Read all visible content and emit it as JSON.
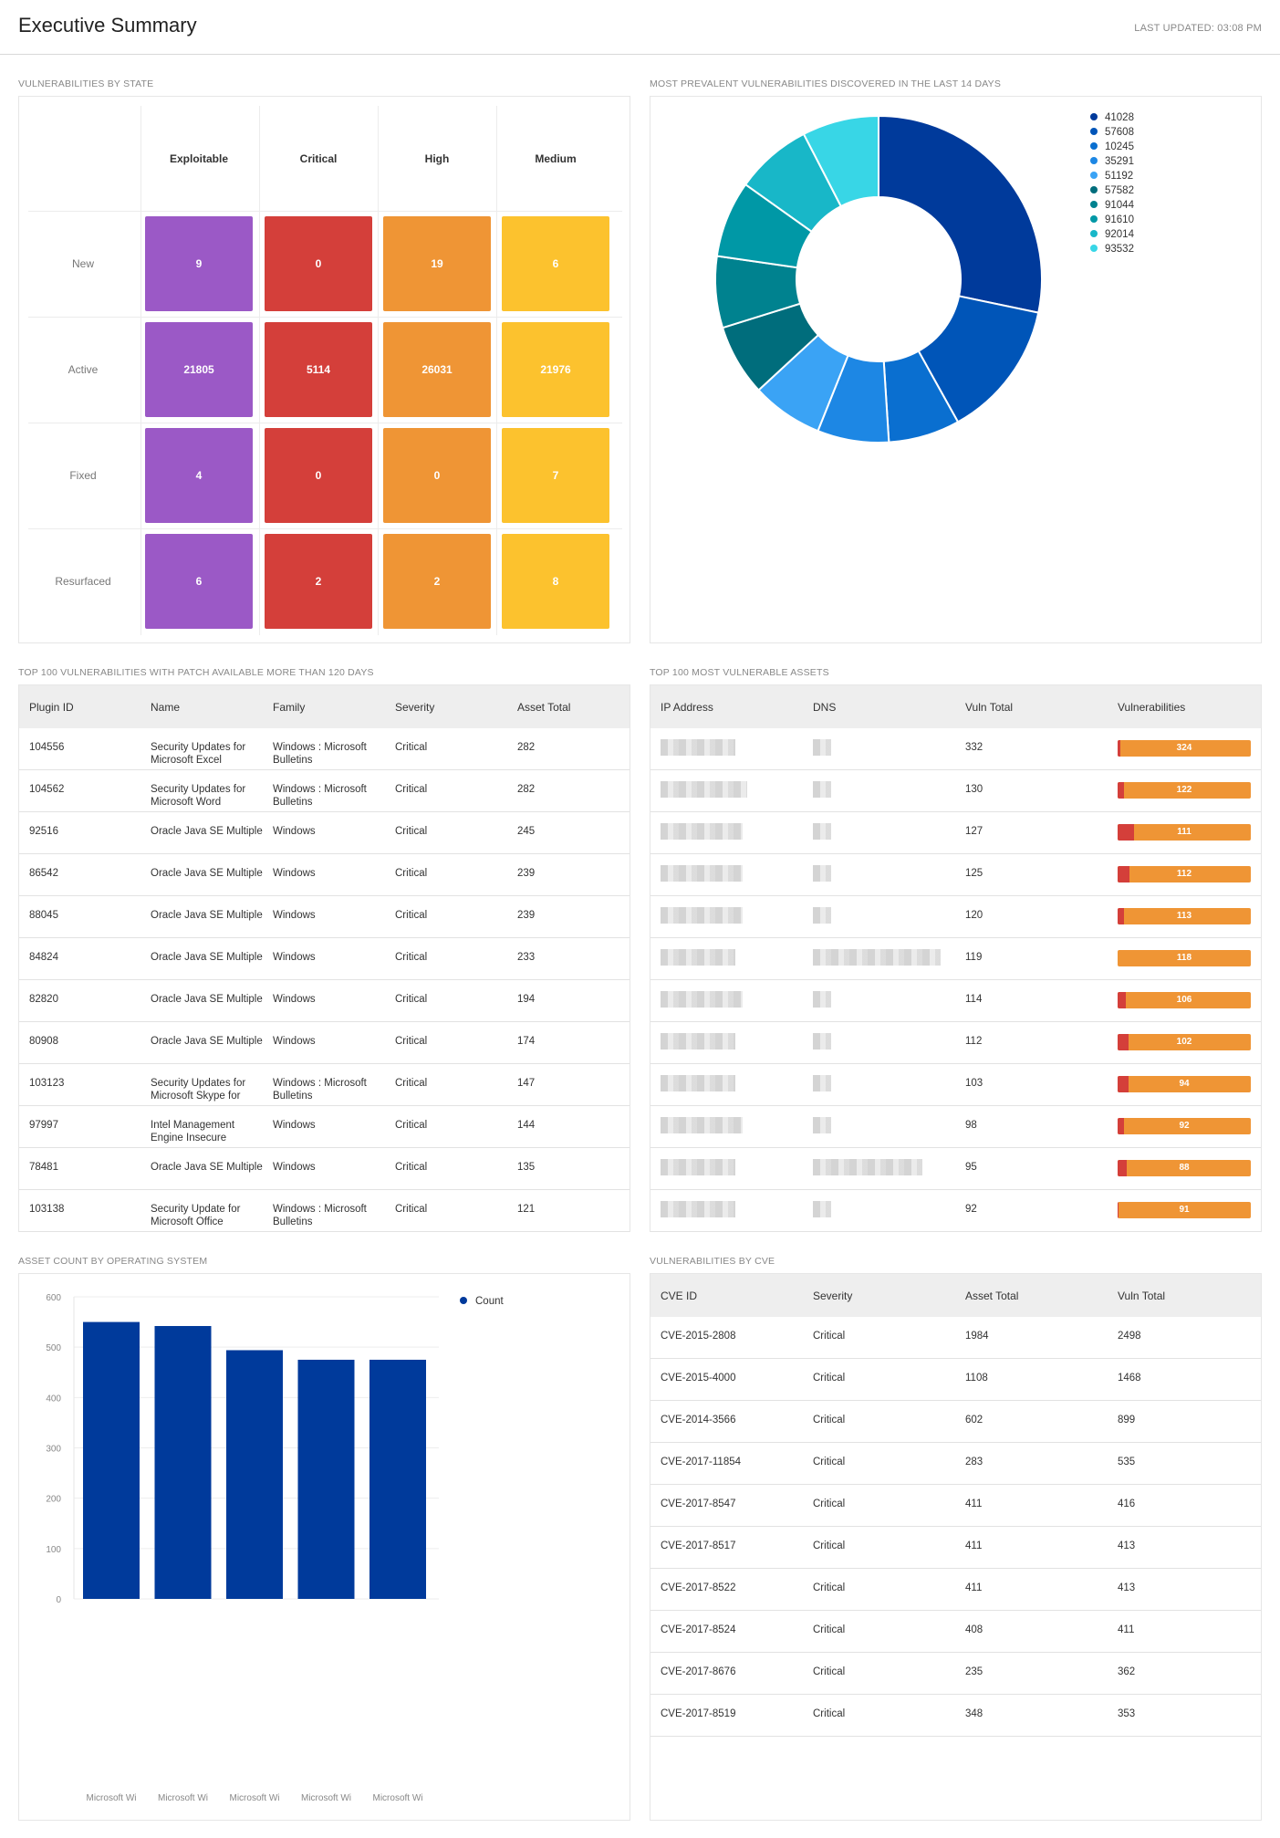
{
  "header": {
    "title": "Executive Summary",
    "last_updated": "LAST UPDATED: 03:08 PM"
  },
  "vuln_state": {
    "title": "VULNERABILITIES BY STATE",
    "columns": [
      "Exploitable",
      "Critical",
      "High",
      "Medium"
    ],
    "rows": [
      {
        "label": "New",
        "values": [
          "9",
          "0",
          "19",
          "6"
        ]
      },
      {
        "label": "Active",
        "values": [
          "21805",
          "5114",
          "26031",
          "21976"
        ]
      },
      {
        "label": "Fixed",
        "values": [
          "4",
          "0",
          "0",
          "7"
        ]
      },
      {
        "label": "Resurfaced",
        "values": [
          "6",
          "2",
          "2",
          "8"
        ]
      }
    ],
    "colors": [
      "#9b59c6",
      "#d43f3a",
      "#ef9535",
      "#fcc22e"
    ]
  },
  "prevalent": {
    "title": "MOST PREVALENT VULNERABILITIES DISCOVERED IN THE LAST 14 DAYS"
  },
  "chart_data": [
    {
      "type": "pie",
      "title": "MOST PREVALENT VULNERABILITIES DISCOVERED IN THE LAST 14 DAYS",
      "donut": true,
      "legend_position": "right",
      "labels": [
        "41028",
        "57608",
        "10245",
        "35291",
        "51192",
        "57582",
        "91044",
        "91610",
        "92014",
        "93532"
      ],
      "values": [
        28,
        13.5,
        7,
        7,
        7,
        7,
        7,
        7.5,
        7.5,
        7.5
      ],
      "colors": [
        "#003a9b",
        "#0055b8",
        "#0a6fd0",
        "#1d87e4",
        "#3aa3f5",
        "#006d7c",
        "#00828f",
        "#0098a6",
        "#18b7c8",
        "#38d6e6"
      ]
    },
    {
      "type": "bar",
      "title": "ASSET COUNT BY OPERATING SYSTEM",
      "categories": [
        "Microsoft Wi",
        "Microsoft Wi",
        "Microsoft Wi",
        "Microsoft Wi",
        "Microsoft Wi"
      ],
      "series": [
        {
          "name": "Count",
          "values": [
            550,
            542,
            494,
            475,
            475
          ]
        }
      ],
      "ylim": [
        0,
        600
      ],
      "yticks": [
        0,
        100,
        200,
        300,
        400,
        500,
        600
      ],
      "color": "#003a9b",
      "legend_position": "top-right"
    }
  ],
  "patch_table": {
    "title": "TOP 100 VULNERABILITIES WITH PATCH AVAILABLE MORE THAN 120 DAYS",
    "columns": [
      "Plugin ID",
      "Name",
      "Family",
      "Severity",
      "Asset Total"
    ],
    "rows": [
      [
        "104556",
        "Security Updates for Microsoft Excel",
        "Windows : Microsoft Bulletins",
        "Critical",
        "282"
      ],
      [
        "104562",
        "Security Updates for Microsoft Word",
        "Windows : Microsoft Bulletins",
        "Critical",
        "282"
      ],
      [
        "92516",
        "Oracle Java SE Multiple",
        "Windows",
        "Critical",
        "245"
      ],
      [
        "86542",
        "Oracle Java SE Multiple",
        "Windows",
        "Critical",
        "239"
      ],
      [
        "88045",
        "Oracle Java SE Multiple",
        "Windows",
        "Critical",
        "239"
      ],
      [
        "84824",
        "Oracle Java SE Multiple",
        "Windows",
        "Critical",
        "233"
      ],
      [
        "82820",
        "Oracle Java SE Multiple",
        "Windows",
        "Critical",
        "194"
      ],
      [
        "80908",
        "Oracle Java SE Multiple",
        "Windows",
        "Critical",
        "174"
      ],
      [
        "103123",
        "Security Updates for Microsoft Skype for",
        "Windows : Microsoft Bulletins",
        "Critical",
        "147"
      ],
      [
        "97997",
        "Intel Management Engine Insecure",
        "Windows",
        "Critical",
        "144"
      ],
      [
        "78481",
        "Oracle Java SE Multiple",
        "Windows",
        "Critical",
        "135"
      ],
      [
        "103138",
        "Security Update for Microsoft Office",
        "Windows : Microsoft Bulletins",
        "Critical",
        "121"
      ]
    ]
  },
  "assets_table": {
    "title": "TOP 100 MOST VULNERABLE ASSETS",
    "columns": [
      "IP Address",
      "DNS",
      "Vuln Total",
      "Vulnerabilities"
    ],
    "rows": [
      {
        "total": "332",
        "bar_label": "324",
        "critical_fraction": 0.02
      },
      {
        "total": "130",
        "bar_label": "122",
        "critical_fraction": 0.05
      },
      {
        "total": "127",
        "bar_label": "111",
        "critical_fraction": 0.12
      },
      {
        "total": "125",
        "bar_label": "112",
        "critical_fraction": 0.09
      },
      {
        "total": "120",
        "bar_label": "113",
        "critical_fraction": 0.05
      },
      {
        "total": "119",
        "bar_label": "118",
        "critical_fraction": 0.0
      },
      {
        "total": "114",
        "bar_label": "106",
        "critical_fraction": 0.06
      },
      {
        "total": "112",
        "bar_label": "102",
        "critical_fraction": 0.08
      },
      {
        "total": "103",
        "bar_label": "94",
        "critical_fraction": 0.08
      },
      {
        "total": "98",
        "bar_label": "92",
        "critical_fraction": 0.05
      },
      {
        "total": "95",
        "bar_label": "88",
        "critical_fraction": 0.07
      },
      {
        "total": "92",
        "bar_label": "91",
        "critical_fraction": 0.01
      }
    ]
  },
  "os_chart": {
    "title": "ASSET COUNT BY OPERATING SYSTEM",
    "legend": "Count"
  },
  "cve_table": {
    "title": "VULNERABILITIES BY CVE",
    "columns": [
      "CVE ID",
      "Severity",
      "Asset Total",
      "Vuln Total"
    ],
    "rows": [
      [
        "CVE-2015-2808",
        "Critical",
        "1984",
        "2498"
      ],
      [
        "CVE-2015-4000",
        "Critical",
        "1108",
        "1468"
      ],
      [
        "CVE-2014-3566",
        "Critical",
        "602",
        "899"
      ],
      [
        "CVE-2017-11854",
        "Critical",
        "283",
        "535"
      ],
      [
        "CVE-2017-8547",
        "Critical",
        "411",
        "416"
      ],
      [
        "CVE-2017-8517",
        "Critical",
        "411",
        "413"
      ],
      [
        "CVE-2017-8522",
        "Critical",
        "411",
        "413"
      ],
      [
        "CVE-2017-8524",
        "Critical",
        "408",
        "411"
      ],
      [
        "CVE-2017-8676",
        "Critical",
        "235",
        "362"
      ],
      [
        "CVE-2017-8519",
        "Critical",
        "348",
        "353"
      ]
    ]
  }
}
